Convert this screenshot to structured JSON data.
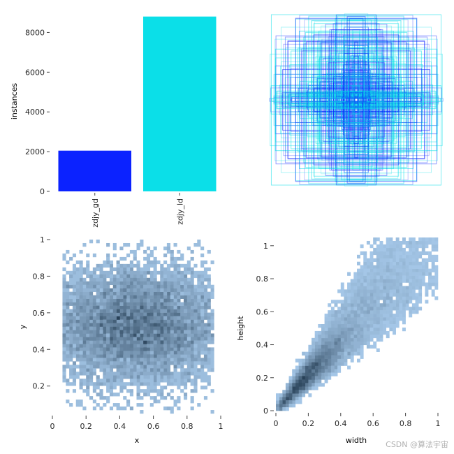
{
  "chart_data": [
    {
      "type": "bar",
      "categories": [
        "zdjy_gd",
        "zdjy_ld"
      ],
      "values": [
        2050,
        8800
      ],
      "ylabel": "instances",
      "xlabel": "",
      "ylim": [
        0,
        9000
      ],
      "yticks": [
        0,
        2000,
        4000,
        6000,
        8000
      ],
      "colors": [
        "#0b22ff",
        "#0bdfe8"
      ],
      "grid": false
    },
    {
      "type": "box-overlay",
      "description_note": "",
      "colors": [
        "#0b22ff",
        "#0bdfe8"
      ],
      "grid": false
    },
    {
      "type": "heatmap",
      "xlabel": "x",
      "ylabel": "y",
      "xlim": [
        0,
        1
      ],
      "ylim": [
        0.05,
        1.0
      ],
      "xticks": [
        0.0,
        0.2,
        0.4,
        0.6,
        0.8,
        1.0
      ],
      "yticks": [
        0.2,
        0.4,
        0.6,
        0.8,
        1.0
      ],
      "center": [
        0.5,
        0.53
      ],
      "spread": [
        0.28,
        0.16
      ],
      "color": "#3a8edb",
      "grid": false
    },
    {
      "type": "heatmap",
      "xlabel": "width",
      "ylabel": "height",
      "xlim": [
        0,
        1
      ],
      "ylim": [
        0,
        1.05
      ],
      "xticks": [
        0.0,
        0.2,
        0.4,
        0.6,
        0.8,
        1.0
      ],
      "yticks": [
        0.0,
        0.2,
        0.4,
        0.6,
        0.8,
        1.0
      ],
      "center": [
        0.15,
        0.17
      ],
      "color": "#3a8edb",
      "grid": false
    }
  ],
  "watermark": "CSDN @算法宇宙"
}
